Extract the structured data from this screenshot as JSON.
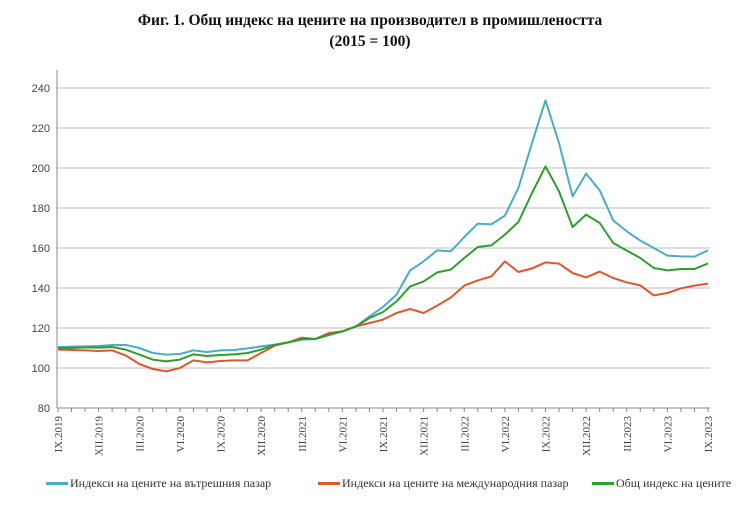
{
  "title_line1": "Фиг. 1. Общ индекс на цените на производител в промишлеността",
  "title_line2": "(2015 = 100)",
  "chart_data": {
    "type": "line",
    "title": "Фиг. 1. Общ индекс на цените на производител в промишлеността (2015 = 100)",
    "xlabel": "",
    "ylabel": "",
    "ylim": [
      80,
      240
    ],
    "yticks": [
      80,
      100,
      120,
      140,
      160,
      180,
      200,
      220,
      240
    ],
    "ytick_labels": [
      "80",
      "100",
      "120",
      "140",
      "160",
      "180",
      "200",
      "220",
      "240"
    ],
    "x_tick_labels": [
      "IX.2019",
      "XII.2019",
      "III.2020",
      "VI.2020",
      "IX.2020",
      "XII.2020",
      "III.2021",
      "VI.2021",
      "IX.2021",
      "XII.2021",
      "III.2022",
      "VI.2022",
      "IX.2022",
      "XII.2022",
      "III.2023",
      "VI.2023",
      "IX.2023"
    ],
    "x_range": [
      "IX.2019",
      "IX.2023"
    ],
    "x_frequency": "monthly",
    "grid": "horizontal",
    "legend_position": "bottom",
    "series": [
      {
        "name": "Индекси на цените на вътрешния пазар",
        "color": "#4bacc6",
        "values": [
          110.5,
          110.7,
          110.8,
          111,
          111.5,
          111.5,
          110,
          107.5,
          106.7,
          107,
          108.8,
          108,
          108.8,
          109,
          109.8,
          110.8,
          111.7,
          112.8,
          114.2,
          114.5,
          117,
          118.3,
          120.8,
          125.8,
          130.5,
          136.7,
          148.8,
          153.3,
          158.8,
          158.3,
          165.5,
          172.2,
          171.8,
          176.2,
          190,
          212.5,
          233.8,
          212.5,
          185.8,
          197.2,
          188.8,
          173.8,
          168.3,
          163.7,
          160,
          156.2,
          155.8,
          155.7,
          158.8
        ]
      },
      {
        "name": "Индекси на цените на международния пазар",
        "color": "#e0562e",
        "values": [
          109.2,
          109,
          108.8,
          108.5,
          108.8,
          106.3,
          102,
          99.5,
          98.3,
          100,
          103.8,
          102.8,
          103.5,
          103.8,
          103.8,
          107.5,
          111.2,
          112.8,
          115.2,
          114.5,
          117.5,
          118.3,
          120.8,
          122.5,
          124.2,
          127.5,
          129.5,
          127.5,
          131.2,
          135.2,
          141.2,
          143.8,
          145.8,
          153.3,
          148,
          149.8,
          152.8,
          152.2,
          147.5,
          145.3,
          148.2,
          145,
          142.8,
          141.3,
          136.3,
          137.5,
          139.8,
          141.2,
          142.2
        ]
      },
      {
        "name": "Общ индекс на цените",
        "color": "#2e9e2e",
        "values": [
          110,
          110,
          110.3,
          110.2,
          110.5,
          109.2,
          106.7,
          104.2,
          103.3,
          104.2,
          106.8,
          106,
          106.5,
          106.8,
          107.5,
          109.2,
          111.5,
          112.8,
          114.5,
          114.5,
          116.5,
          118.3,
          120.8,
          125,
          128,
          133.3,
          140.8,
          143.3,
          147.8,
          149.2,
          155,
          160.5,
          161.3,
          166.7,
          173,
          187.5,
          200.8,
          188.3,
          170.5,
          176.7,
          172.5,
          162.5,
          158.7,
          155,
          150,
          148.8,
          149.5,
          149.5,
          152.3
        ]
      }
    ]
  }
}
